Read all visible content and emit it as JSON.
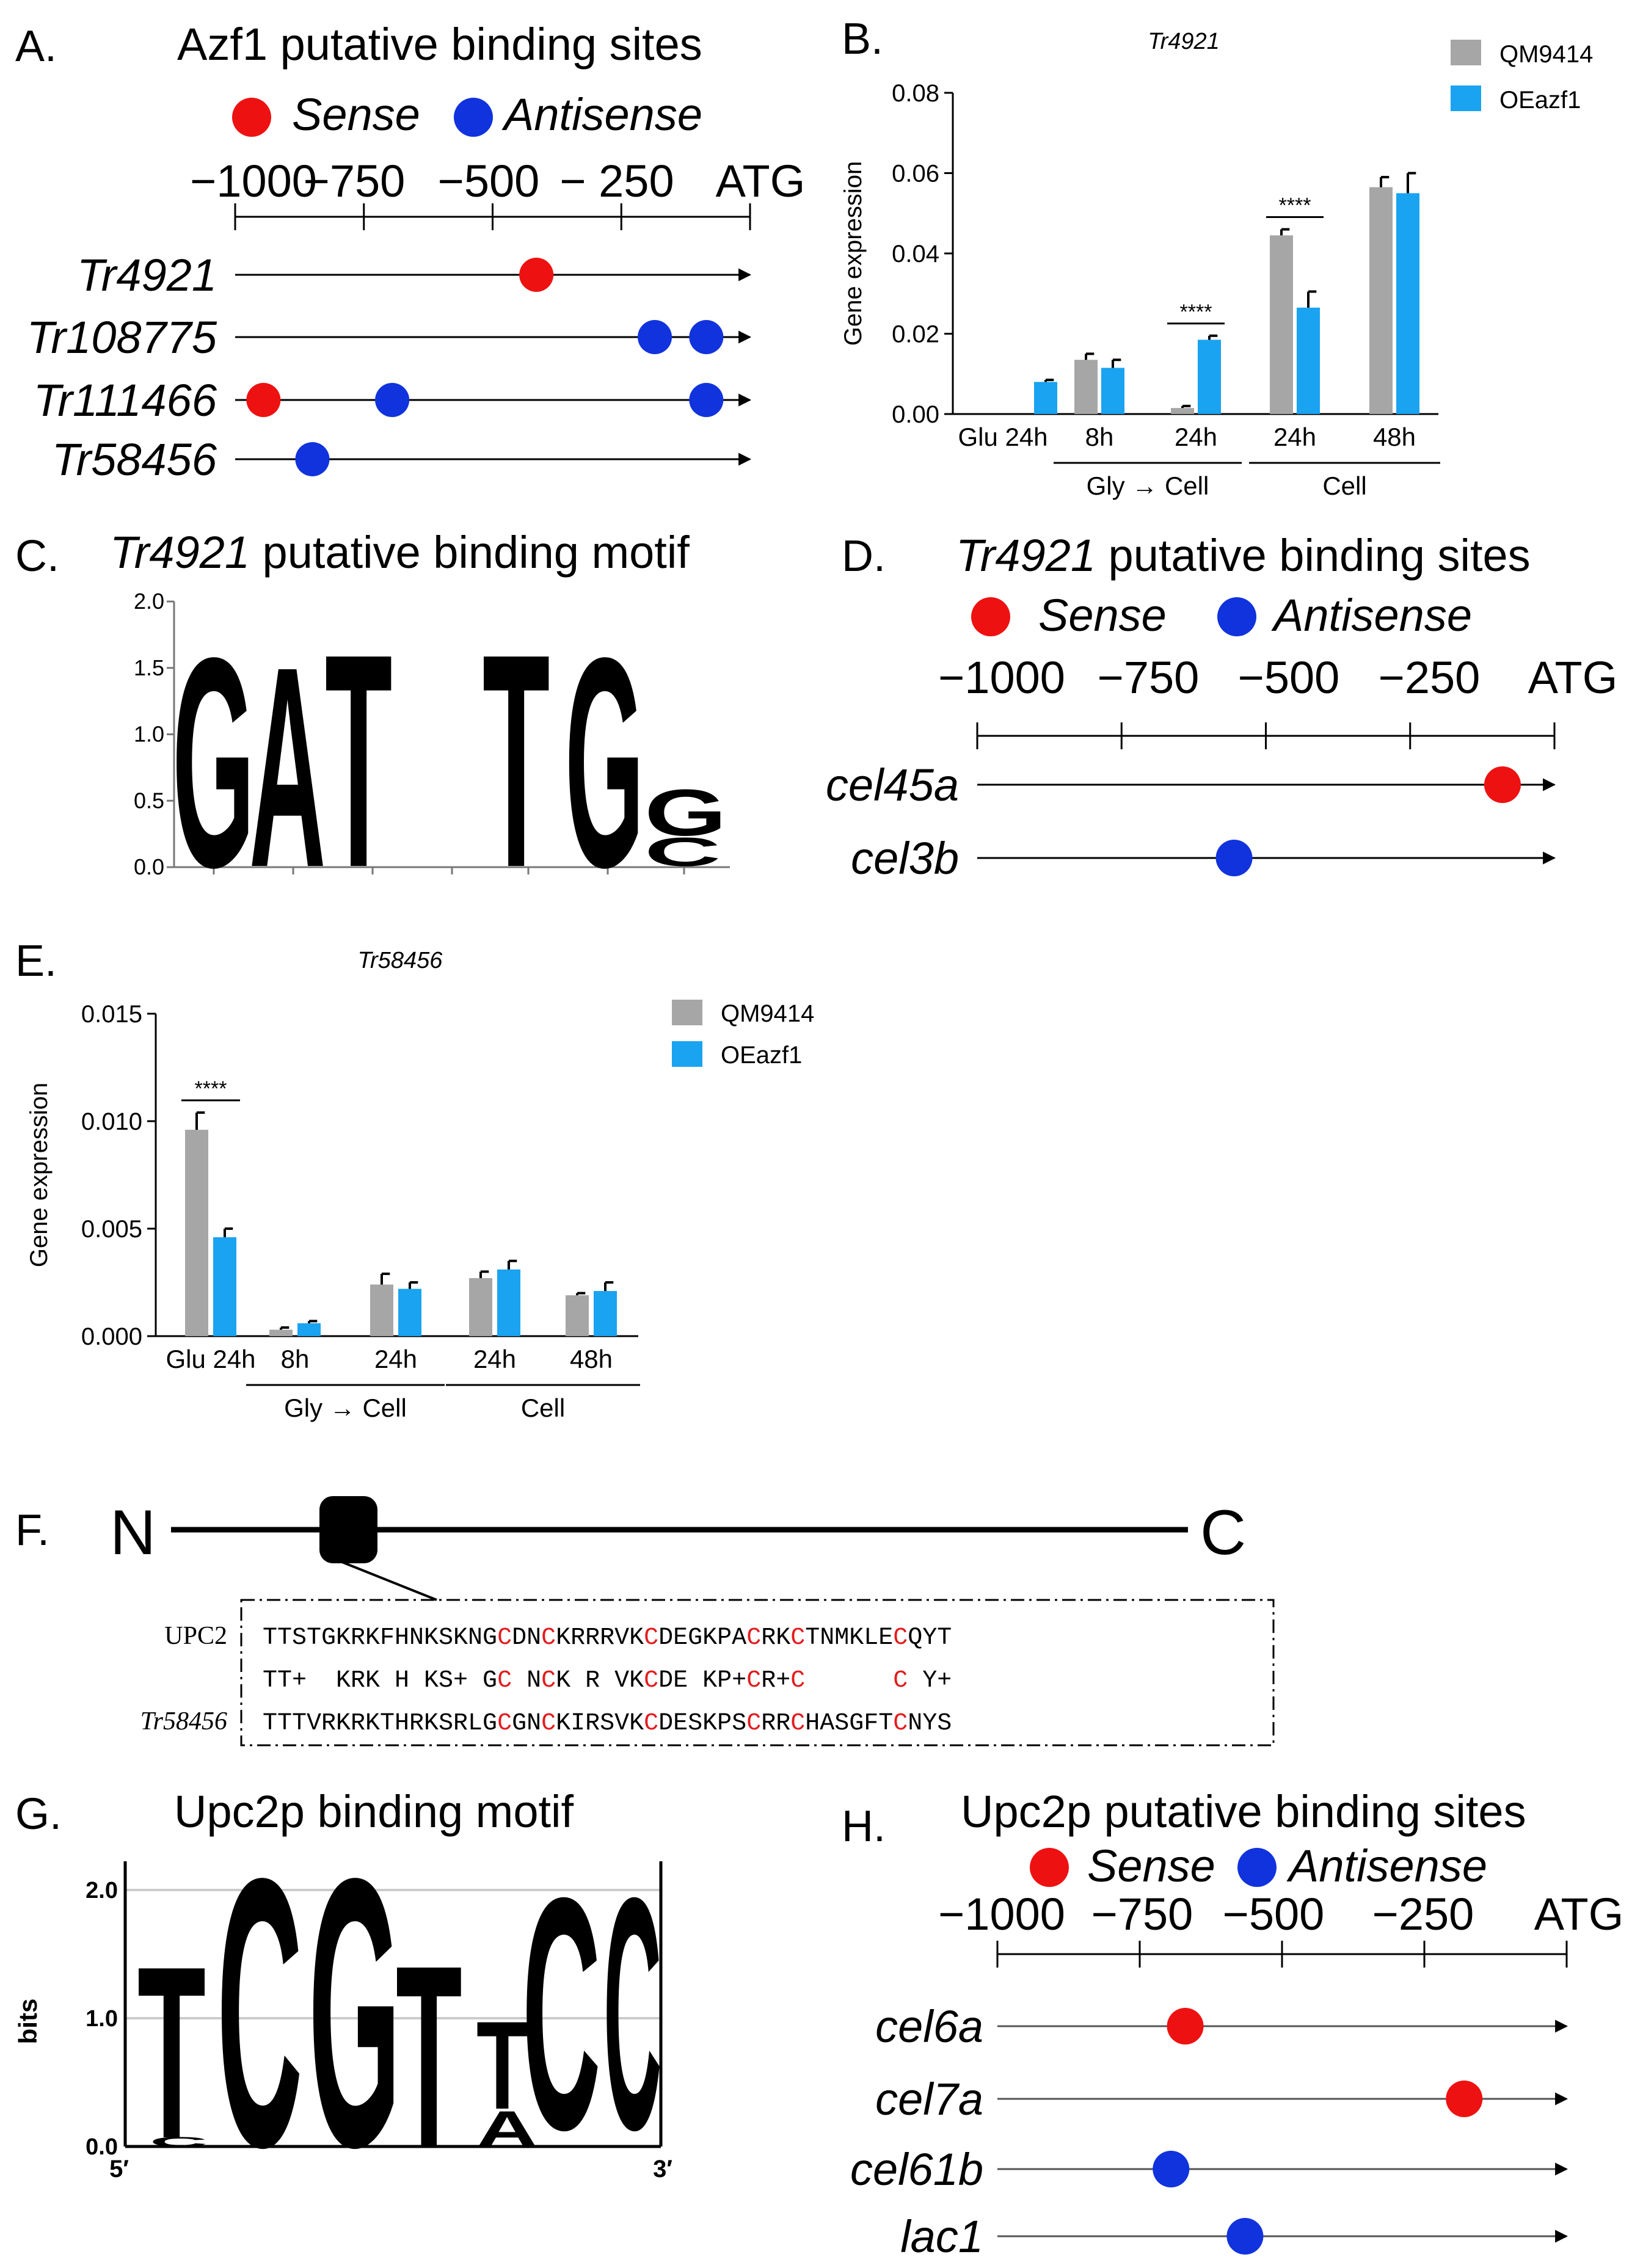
{
  "colors": {
    "sense": "#ee1111",
    "antisense": "#1133dd",
    "grey": "#a6a6a6",
    "blue": "#1aa3f0",
    "red_letter": "#e41a1c"
  },
  "panelA": {
    "letter": "A.",
    "title": "Azf1 putative binding sites",
    "legend_sense": "Sense",
    "legend_antisense": "Antisense",
    "ticks": [
      "−1000",
      "−750",
      "−500",
      "− 250",
      "ATG"
    ],
    "genes": [
      {
        "name": "Tr4921",
        "sites": [
          {
            "pos": -415,
            "type": "sense"
          }
        ]
      },
      {
        "name": "Tr108775",
        "sites": [
          {
            "pos": -185,
            "type": "antisense"
          },
          {
            "pos": -85,
            "type": "antisense"
          }
        ]
      },
      {
        "name": "Tr111466",
        "sites": [
          {
            "pos": -945,
            "type": "sense"
          },
          {
            "pos": -695,
            "type": "antisense"
          },
          {
            "pos": -85,
            "type": "antisense"
          }
        ]
      },
      {
        "name": "Tr58456",
        "sites": [
          {
            "pos": -850,
            "type": "antisense"
          }
        ]
      }
    ]
  },
  "panelB": {
    "letter": "B.",
    "chart_data": {
      "type": "bar",
      "title": "Tr4921",
      "ylabel": "Gene expression",
      "ylim": [
        0,
        0.08
      ],
      "yticks": [
        "0.00",
        "0.02",
        "0.04",
        "0.06",
        "0.08"
      ],
      "categories": [
        "Glu 24h",
        "8h",
        "24h",
        "24h",
        "48h"
      ],
      "groups": [
        {
          "label": "Gly → Cell",
          "categories": [
            1,
            2
          ]
        },
        {
          "label": "Cell",
          "categories": [
            3,
            4
          ]
        }
      ],
      "series": [
        {
          "name": "QM9414",
          "values": [
            0.0,
            0.0135,
            0.0015,
            0.0445,
            0.0565
          ],
          "errors": [
            0,
            0.0015,
            0.0005,
            0.0015,
            0.0025
          ]
        },
        {
          "name": "OEazf1",
          "values": [
            0.008,
            0.0115,
            0.0185,
            0.0265,
            0.055
          ],
          "errors": [
            0.0005,
            0.002,
            0.001,
            0.004,
            0.005
          ]
        }
      ],
      "significance": [
        {
          "category": 2,
          "label": "****"
        },
        {
          "category": 3,
          "label": "****"
        }
      ]
    }
  },
  "panelC": {
    "letter": "C.",
    "title_italic": "Tr4921",
    "title_rest": " putative binding motif",
    "yticks": [
      "2.0",
      "1.5",
      "1.0",
      "0.5",
      "0.0"
    ],
    "letters": [
      "G",
      "A",
      "T",
      "T",
      "G",
      "G",
      "C"
    ]
  },
  "panelD": {
    "letter": "D.",
    "title_italic": "Tr4921",
    "title_rest": " putative binding sites",
    "legend_sense": "Sense",
    "legend_antisense": "Antisense",
    "ticks": [
      "−1000",
      "−750",
      "−500",
      "−250",
      "ATG"
    ],
    "genes": [
      {
        "name": "cel45a",
        "sites": [
          {
            "pos": -90,
            "type": "sense"
          }
        ]
      },
      {
        "name": "cel3b",
        "sites": [
          {
            "pos": -555,
            "type": "antisense"
          }
        ]
      }
    ]
  },
  "panelE": {
    "letter": "E.",
    "chart_data": {
      "type": "bar",
      "title": "Tr58456",
      "ylabel": "Gene expression",
      "ylim": [
        0,
        0.015
      ],
      "yticks": [
        "0.000",
        "0.005",
        "0.010",
        "0.015"
      ],
      "categories": [
        "Glu 24h",
        "8h",
        "24h",
        "24h",
        "48h"
      ],
      "groups": [
        {
          "label": "Gly → Cell",
          "categories": [
            1,
            2
          ]
        },
        {
          "label": "Cell",
          "categories": [
            3,
            4
          ]
        }
      ],
      "series": [
        {
          "name": "QM9414",
          "values": [
            0.0096,
            0.0003,
            0.0024,
            0.0027,
            0.0019
          ],
          "errors": [
            0.0008,
            0.0001,
            0.0005,
            0.0003,
            0.0001
          ]
        },
        {
          "name": "OEazf1",
          "values": [
            0.0046,
            0.0006,
            0.0022,
            0.0031,
            0.0021
          ],
          "errors": [
            0.0004,
            0.0001,
            0.0003,
            0.0004,
            0.0004
          ]
        }
      ],
      "significance": [
        {
          "category": 0,
          "label": "****"
        }
      ]
    }
  },
  "panelF": {
    "letter": "F.",
    "n_label": "N",
    "c_label": "C",
    "row1_label": "UPC2",
    "row3_label": "Tr58456",
    "row1": "TTSTGKRKFHNKSKNGCDNCKRRRVKCDEGKPACRKCTNMKLECQYT",
    "row2": "TT+  KRK H KS+ GC NCK R VKCDE KP+CR+C      C Y+",
    "row3": "TTTVRKRKTHRKSRLGCGNCKIRSVKCDESKPSCRRCHASGFTCNYS",
    "red_columns": [
      16,
      19,
      26,
      33,
      36,
      43
    ]
  },
  "panelG": {
    "letter": "G.",
    "title": "Upc2p binding motif",
    "ylabel": "bits",
    "yticks": [
      "2.0",
      "1.0",
      "0.0"
    ],
    "x_start": "5′",
    "x_end": "3′",
    "letters": [
      "T",
      "C",
      "G",
      "T",
      "T",
      "A",
      "C",
      "C"
    ]
  },
  "panelH": {
    "letter": "H.",
    "title": "Upc2p putative binding sites",
    "legend_sense": "Sense",
    "legend_antisense": "Antisense",
    "ticks": [
      "−1000",
      "−750",
      "−500",
      "−250",
      "ATG"
    ],
    "genes": [
      {
        "name": "cel6a",
        "sites": [
          {
            "pos": -670,
            "type": "sense"
          }
        ]
      },
      {
        "name": "cel7a",
        "sites": [
          {
            "pos": -180,
            "type": "sense"
          }
        ]
      },
      {
        "name": "cel61b",
        "sites": [
          {
            "pos": -695,
            "type": "antisense"
          }
        ]
      },
      {
        "name": "lac1",
        "sites": [
          {
            "pos": -565,
            "type": "antisense"
          }
        ]
      }
    ]
  }
}
